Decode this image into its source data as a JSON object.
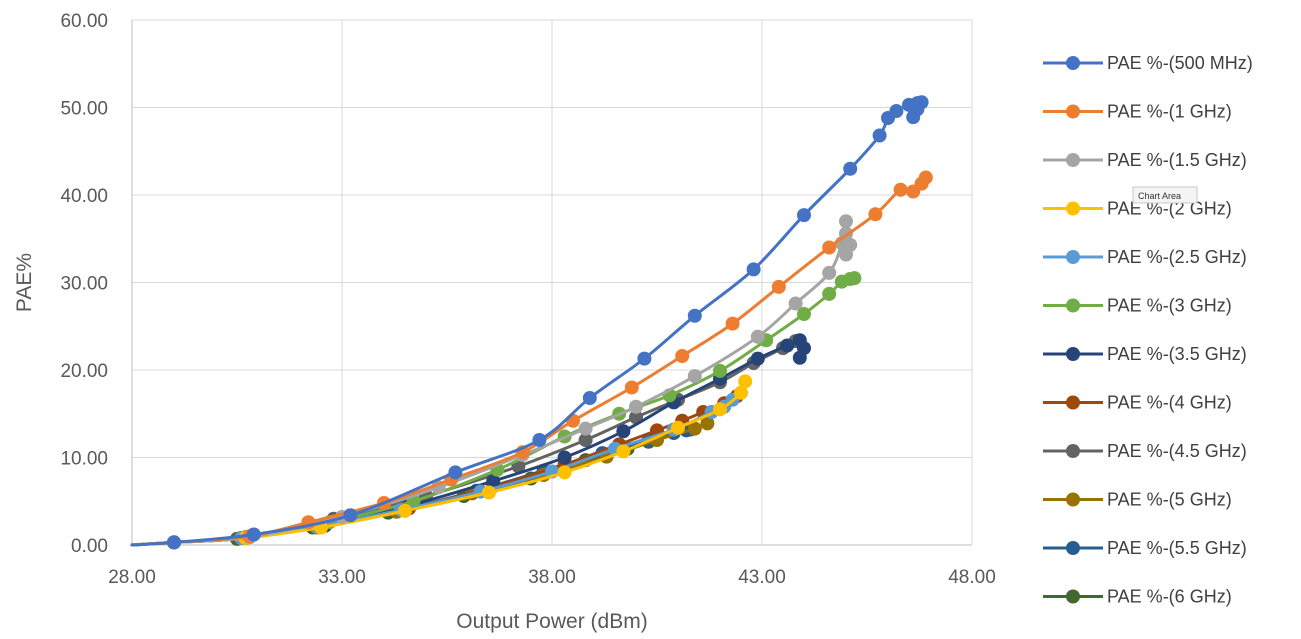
{
  "chart_data": {
    "type": "line",
    "title": "",
    "xlabel": "Output Power (dBm)",
    "ylabel": "PAE%",
    "xlim": [
      28,
      48
    ],
    "ylim": [
      0,
      60
    ],
    "x_ticks": [
      "28.00",
      "33.00",
      "38.00",
      "43.00",
      "48.00"
    ],
    "y_ticks": [
      "0.00",
      "10.00",
      "20.00",
      "30.00",
      "40.00",
      "50.00",
      "60.00"
    ],
    "grid": true,
    "legend_position": "right",
    "tooltip": "Chart Area",
    "series": [
      {
        "name": "PAE %-(500 MHz)",
        "color": "#4472C4",
        "x": [
          29.0,
          30.9,
          33.2,
          35.7,
          37.7,
          38.9,
          40.2,
          41.4,
          42.8,
          44.0,
          45.1,
          45.8,
          46.0,
          46.2,
          46.5,
          46.7,
          46.8,
          46.7,
          46.6
        ],
        "y": [
          0.3,
          1.2,
          3.4,
          8.3,
          12.0,
          16.8,
          21.3,
          26.2,
          31.5,
          37.7,
          43.0,
          46.8,
          48.8,
          49.6,
          50.3,
          50.5,
          50.6,
          49.8,
          48.9
        ]
      },
      {
        "name": "PAE %-(1 GHz)",
        "color": "#ED7D31",
        "x": [
          29.0,
          30.8,
          32.2,
          34.0,
          35.6,
          37.3,
          38.5,
          39.9,
          41.1,
          42.3,
          43.4,
          44.6,
          45.7,
          46.3,
          46.6,
          46.8,
          46.9
        ],
        "y": [
          0.3,
          1.0,
          2.6,
          4.8,
          7.5,
          10.6,
          14.2,
          18.0,
          21.6,
          25.3,
          29.5,
          34.0,
          37.8,
          40.6,
          40.4,
          41.3,
          42.0
        ]
      },
      {
        "name": "PAE %-(1.5 GHz)",
        "color": "#A5A5A5",
        "x": [
          29.0,
          30.8,
          33.0,
          35.3,
          37.3,
          38.8,
          40.0,
          41.4,
          42.9,
          43.8,
          44.6,
          44.9,
          45.0,
          45.0,
          45.1,
          45.0
        ],
        "y": [
          0.3,
          0.9,
          3.2,
          6.6,
          10.3,
          13.3,
          15.8,
          19.3,
          23.8,
          27.6,
          31.1,
          34.5,
          37.0,
          35.6,
          34.3,
          33.2
        ]
      },
      {
        "name": "PAE %-(2 GHz)",
        "color": "#FFC000",
        "x": [
          29.0,
          30.7,
          32.5,
          34.5,
          36.5,
          38.3,
          39.7,
          41.0,
          42.0,
          42.5,
          42.6
        ],
        "y": [
          0.3,
          0.8,
          2.0,
          3.9,
          6.0,
          8.3,
          10.7,
          13.4,
          15.5,
          17.4,
          18.7
        ]
      },
      {
        "name": "PAE %-(2.5 GHz)",
        "color": "#5B9BD5",
        "x": [
          29.0,
          30.6,
          32.4,
          34.4,
          36.3,
          38.0,
          39.5,
          40.9,
          41.8,
          42.1,
          42.3
        ],
        "y": [
          0.3,
          0.8,
          2.1,
          4.0,
          6.1,
          8.4,
          11.0,
          13.2,
          15.2,
          15.8,
          16.6
        ]
      },
      {
        "name": "PAE %-(3 GHz)",
        "color": "#70AD47",
        "x": [
          29.0,
          30.7,
          32.7,
          34.7,
          36.7,
          38.3,
          39.6,
          40.8,
          42.0,
          43.1,
          44.0,
          44.6,
          44.9,
          45.1,
          45.2
        ],
        "y": [
          0.3,
          0.9,
          2.6,
          5.0,
          8.6,
          12.4,
          15.0,
          17.1,
          19.9,
          23.4,
          26.4,
          28.7,
          30.1,
          30.4,
          30.5
        ]
      },
      {
        "name": "PAE %-(3.5 GHz)",
        "color": "#264478",
        "x": [
          29.0,
          30.7,
          32.6,
          34.6,
          36.6,
          38.3,
          39.7,
          40.9,
          42.0,
          42.9,
          43.6,
          43.9,
          44.0,
          43.9
        ],
        "y": [
          0.3,
          0.8,
          2.3,
          4.5,
          7.3,
          10.0,
          13.0,
          16.3,
          19.0,
          21.3,
          22.8,
          23.4,
          22.5,
          21.4
        ]
      },
      {
        "name": "PAE %-(4 GHz)",
        "color": "#9E480E",
        "x": [
          29.0,
          30.7,
          32.6,
          34.6,
          36.6,
          38.3,
          39.6,
          40.5,
          41.1,
          41.6,
          42.1,
          42.4
        ],
        "y": [
          0.3,
          0.8,
          2.2,
          4.2,
          6.7,
          9.2,
          11.5,
          13.1,
          14.2,
          15.2,
          16.2,
          17.0
        ]
      },
      {
        "name": "PAE %-(4.5 GHz)",
        "color": "#636363",
        "x": [
          29.0,
          30.8,
          32.8,
          35.0,
          37.2,
          38.8,
          40.0,
          41.0,
          42.0,
          42.8,
          43.5,
          43.8
        ],
        "y": [
          0.3,
          0.9,
          3.0,
          5.6,
          9.0,
          12.0,
          14.6,
          16.6,
          18.6,
          20.8,
          22.5,
          23.3
        ]
      },
      {
        "name": "PAE %-(5 GHz)",
        "color": "#997300",
        "x": [
          29.0,
          30.6,
          32.4,
          34.3,
          36.1,
          37.8,
          39.3,
          40.5,
          41.4,
          41.7
        ],
        "y": [
          0.3,
          0.8,
          2.0,
          3.8,
          5.9,
          8.0,
          10.1,
          12.0,
          13.3,
          13.9
        ]
      },
      {
        "name": "PAE %-(5.5 GHz)",
        "color": "#255E91",
        "x": [
          29.0,
          30.6,
          32.4,
          34.3,
          36.2,
          37.8,
          39.2,
          40.3,
          40.9,
          41.2,
          41.3
        ],
        "y": [
          0.3,
          0.8,
          2.1,
          3.9,
          6.2,
          8.5,
          10.5,
          12.0,
          12.8,
          13.1,
          13.2
        ]
      },
      {
        "name": "PAE %-(6 GHz)",
        "color": "#43682B",
        "x": [
          29.0,
          30.5,
          32.3,
          34.1,
          35.9,
          37.5,
          38.8,
          39.8,
          40.3,
          40.5
        ],
        "y": [
          0.3,
          0.7,
          2.0,
          3.7,
          5.6,
          7.6,
          9.7,
          11.0,
          11.8,
          12.1
        ]
      }
    ]
  }
}
